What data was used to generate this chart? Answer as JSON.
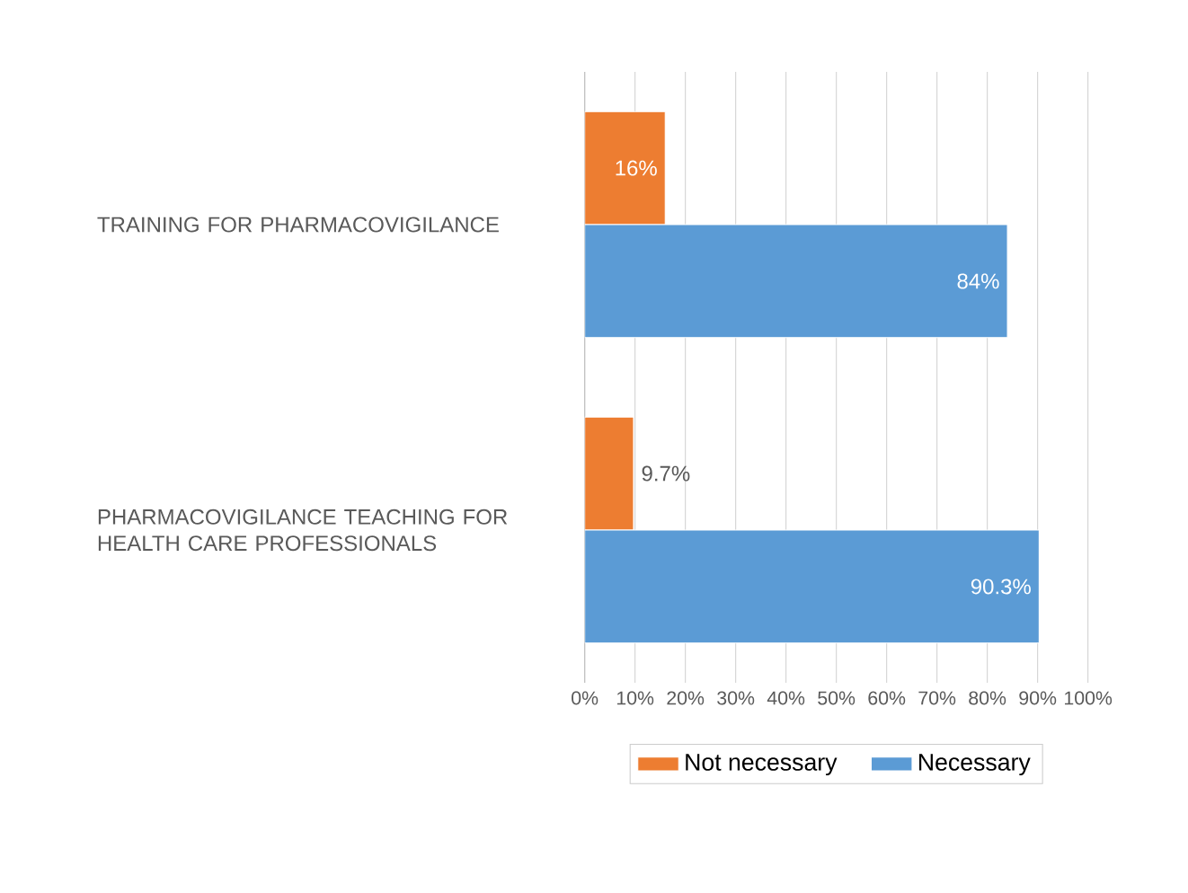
{
  "chart_data": {
    "type": "bar",
    "orientation": "horizontal",
    "categories": [
      "TRAINING FOR PHARMACOVIGILANCE",
      "PHARMACOVIGILANCE TEACHING FOR HEALTH CARE PROFESSIONALS"
    ],
    "series": [
      {
        "name": "Not necessary",
        "color": "#ed7d31",
        "values": [
          16,
          9.7
        ],
        "value_labels": [
          "16%",
          "9.7%"
        ]
      },
      {
        "name": "Necessary",
        "color": "#5b9bd5",
        "values": [
          84,
          90.3
        ],
        "value_labels": [
          "84%",
          "90.3%"
        ]
      }
    ],
    "xlim": [
      0,
      100
    ],
    "xticks": [
      {
        "value": 0,
        "label": "0%"
      },
      {
        "value": 10,
        "label": "10%"
      },
      {
        "value": 20,
        "label": "20%"
      },
      {
        "value": 30,
        "label": "30%"
      },
      {
        "value": 40,
        "label": "40%"
      },
      {
        "value": 50,
        "label": "50%"
      },
      {
        "value": 60,
        "label": "60%"
      },
      {
        "value": 70,
        "label": "70%"
      },
      {
        "value": 80,
        "label": "80%"
      },
      {
        "value": 90,
        "label": "90%"
      },
      {
        "value": 100,
        "label": "100%"
      }
    ],
    "grid": "x",
    "legend": "bottom"
  }
}
